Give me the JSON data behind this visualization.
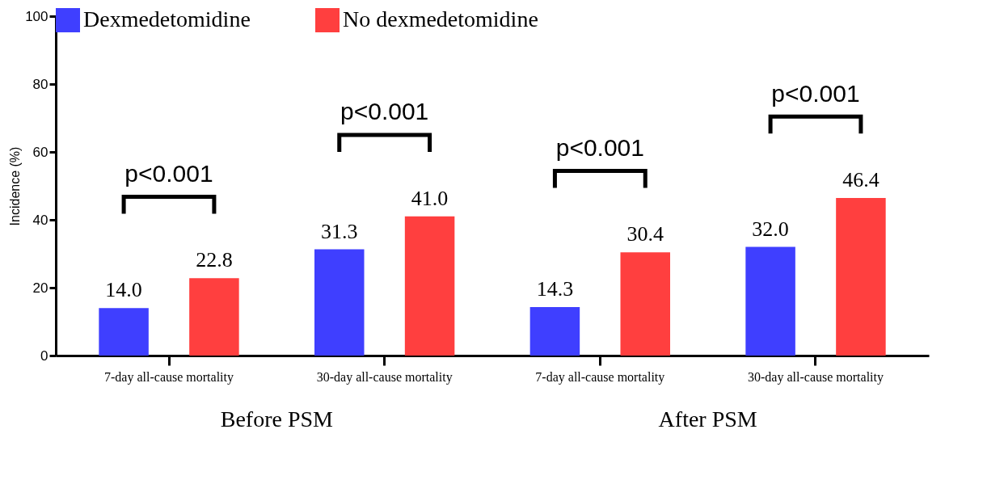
{
  "chart_data": {
    "type": "bar",
    "ylabel": "Incidence (%)",
    "categories": [
      "7-day all-cause mortality",
      "30-day all-cause mortality",
      "7-day all-cause mortality",
      "30-day all-cause mortality"
    ],
    "series": [
      {
        "name": "Dexmedetomidine",
        "color": "#3f3fff",
        "values": [
          14.0,
          31.3,
          14.3,
          32.0
        ],
        "value_labels": [
          "14.0",
          "31.3",
          "14.3",
          "32.0"
        ]
      },
      {
        "name": "No dexmedetomidine",
        "color": "#ff3f3f",
        "values": [
          22.8,
          41.0,
          30.4,
          46.4
        ],
        "value_labels": [
          "22.8",
          "41.0",
          "30.4",
          "46.4"
        ]
      }
    ],
    "ylim": [
      0,
      100
    ],
    "yticks": [
      0,
      20,
      40,
      60,
      80,
      100
    ],
    "grid": false,
    "legend": "top",
    "annotations": [
      "p<0.001",
      "p<0.001",
      "p<0.001",
      "p<0.001",
      "Before PSM",
      "After PSM"
    ]
  }
}
